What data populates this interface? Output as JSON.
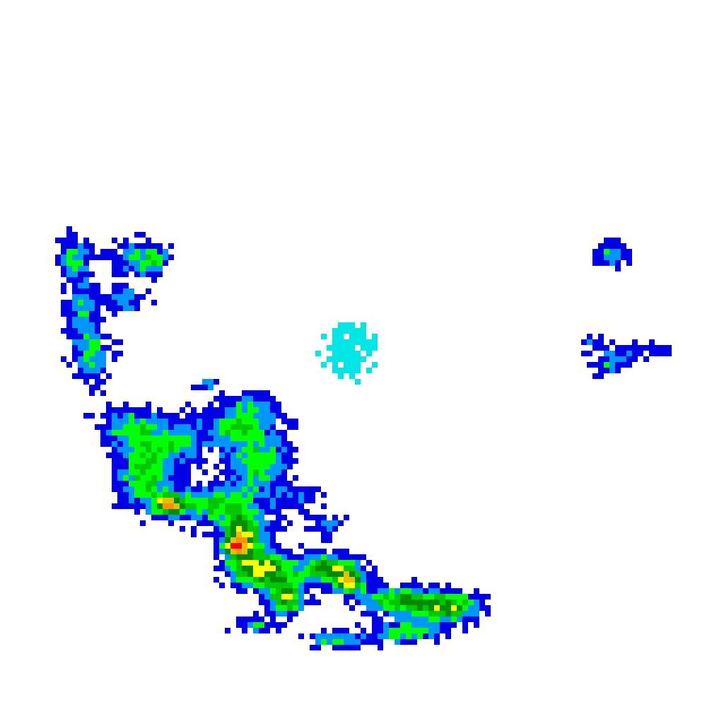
{
  "map": {
    "kind": "precipitation-radar-tile",
    "background": "#ffffff",
    "reflectivity_colors": {
      "very_light": "#0000e6",
      "light": "#0096ff",
      "light_moderate": "#00ff00",
      "moderate": "#00c800",
      "moderate_heavy": "#008c00",
      "heavy": "#ffff00",
      "heavy_plus": "#e6c000",
      "very_heavy": "#ff9000",
      "intense": "#ff0000",
      "clutter": "#00e6e6"
    }
  }
}
